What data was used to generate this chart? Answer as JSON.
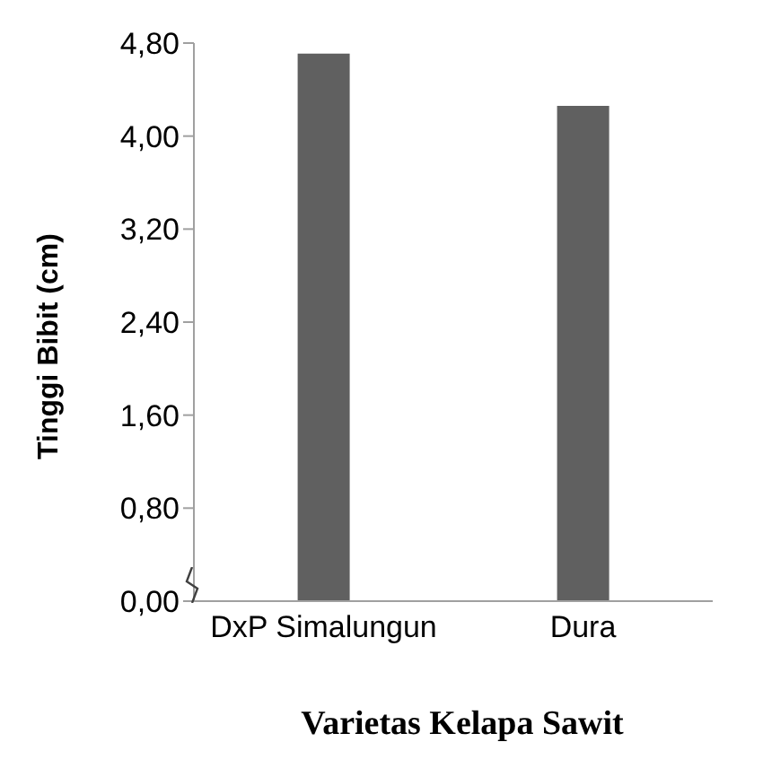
{
  "chart_data": {
    "type": "bar",
    "xlabel": "Varietas Kelapa Sawit",
    "ylabel": "Tinggi Bibit (cm)",
    "categories": [
      "DxP Simalungun",
      "Dura"
    ],
    "values": [
      4.71,
      4.26
    ],
    "color": "#606060",
    "ylim": [
      0,
      4.8
    ],
    "yticks": [
      {
        "value": 0,
        "label": "0,00"
      },
      {
        "value": 0.8,
        "label": "0,80"
      },
      {
        "value": 1.6,
        "label": "1,60"
      },
      {
        "value": 2.4,
        "label": "2,40"
      },
      {
        "value": 3.2,
        "label": "3,20"
      },
      {
        "value": 4.0,
        "label": "4,00"
      },
      {
        "value": 4.8,
        "label": "4,80"
      }
    ],
    "grid": false,
    "legend": false
  }
}
